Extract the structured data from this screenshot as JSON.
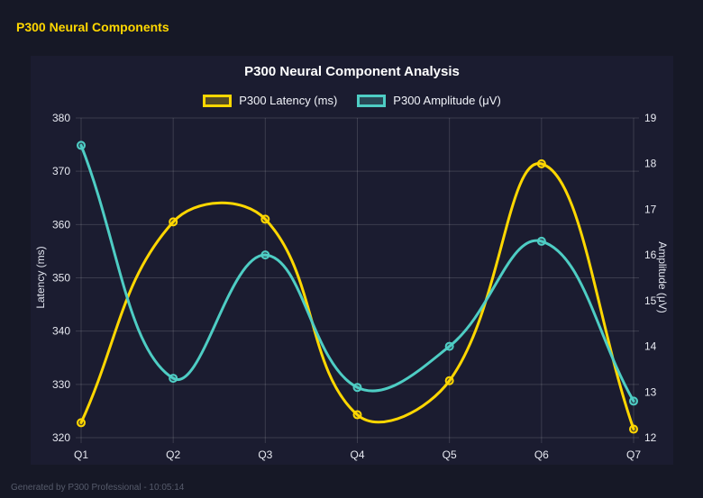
{
  "page": {
    "header_title": "P300 Neural Components",
    "footer": "Generated by P300 Professional - 10:05:14"
  },
  "colors": {
    "page_bg": "#161826",
    "card_bg": "#1b1c30",
    "grid": "rgba(255,255,255,0.14)",
    "tick_text": "#e7e9f1",
    "header_text": "#FFD700",
    "footer_text": "#565b6b",
    "latency_series": "#FFD700",
    "amplitude_series": "#4ECDC4"
  },
  "chart_data": {
    "type": "line",
    "title": "P300 Neural Component Analysis",
    "categories": [
      "Q1",
      "Q2",
      "Q3",
      "Q4",
      "Q5",
      "Q6",
      "Q7"
    ],
    "series": [
      {
        "name": "P300 Latency (ms)",
        "axis": "left",
        "color": "#FFD700",
        "values": [
          322.8,
          360.5,
          361.0,
          324.3,
          330.7,
          371.4,
          321.6
        ]
      },
      {
        "name": "P300 Amplitude (μV)",
        "axis": "right",
        "color": "#4ECDC4",
        "values": [
          18.4,
          13.3,
          16.0,
          13.1,
          14.0,
          16.3,
          12.8
        ]
      }
    ],
    "left_axis": {
      "label": "Latency (ms)",
      "min": 320,
      "max": 380,
      "step": 10
    },
    "right_axis": {
      "label": "Amplitude (μV)",
      "min": 12,
      "max": 19,
      "step": 1
    },
    "grid": true,
    "legend_position": "top",
    "line_tension": 0.4
  }
}
